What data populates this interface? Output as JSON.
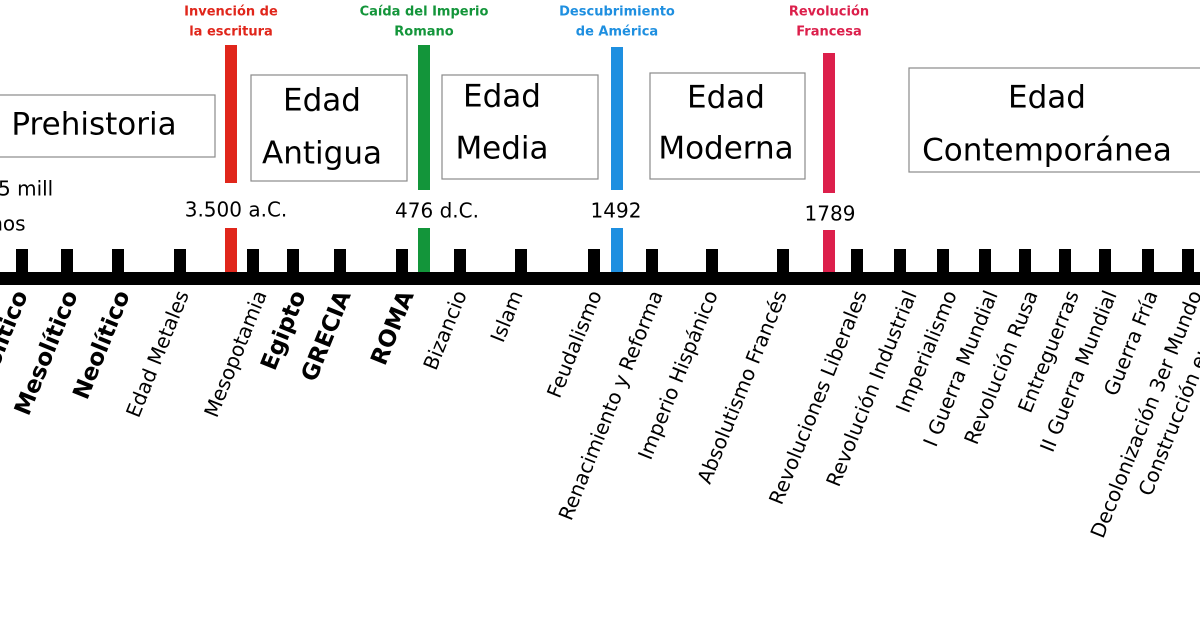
{
  "periods": [
    {
      "lines": [
        "Prehistoria"
      ]
    },
    {
      "lines": [
        "Edad",
        "Antigua"
      ]
    },
    {
      "lines": [
        "Edad",
        "Media"
      ]
    },
    {
      "lines": [
        "Edad",
        "Moderna"
      ]
    },
    {
      "lines": [
        "Edad",
        "Contemporánea"
      ]
    }
  ],
  "prehistory_start": [
    "5 mill",
    "años"
  ],
  "milestones": [
    {
      "label": [
        "Invención de",
        "la escritura"
      ],
      "date": "3.500  a.C."
    },
    {
      "label": [
        "Caída del Imperio",
        "Romano"
      ],
      "date": "476 d.C."
    },
    {
      "label": [
        "Descubrimiento",
        "de América"
      ],
      "date": "1492"
    },
    {
      "label": [
        "Revolución",
        "Francesa"
      ],
      "date": "1789"
    }
  ],
  "topics": [
    "Paleolítico",
    "Mesolítico",
    "Neolítico",
    "Edad Metales",
    "Mesopotamia",
    "Egipto",
    "GRECIA",
    "ROMA",
    "Bizancio",
    "Islam",
    "Feudalismo",
    "Renacimiento y Reforma",
    "Imperio Hispánico",
    "Absolutismo Francés",
    "Revoluciones Liberales",
    "Revolución Industrial",
    "Imperialismo",
    "I Guerra Mundial",
    "Revolución Rusa",
    "Entreguerras",
    "II Guerra Mundial",
    "Guerra Fría",
    "Decolonización 3er Mundo",
    "Construcción europea"
  ]
}
